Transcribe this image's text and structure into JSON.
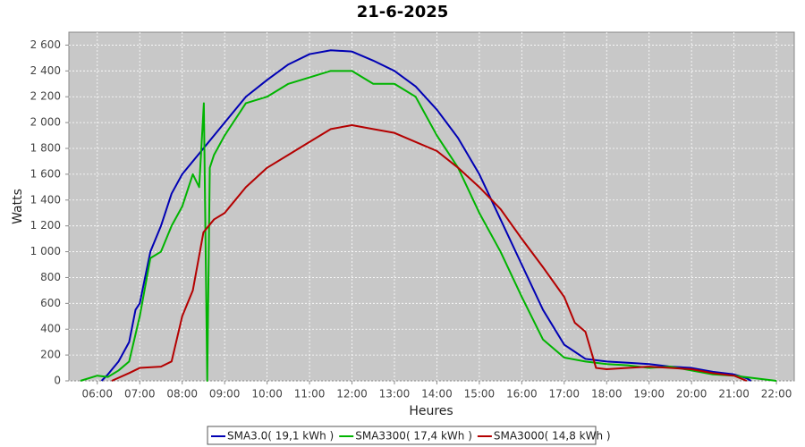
{
  "chart_data": {
    "type": "line",
    "title": "21-6-2025",
    "x_label": "Heures",
    "y_label": "Watts",
    "xlim": [
      5.33,
      22.42
    ],
    "ylim": [
      0,
      2700
    ],
    "grid": true,
    "legend": "bottom",
    "xticks": [
      {
        "value": 6,
        "label": "06:00"
      },
      {
        "value": 7,
        "label": "07:00"
      },
      {
        "value": 8,
        "label": "08:00"
      },
      {
        "value": 9,
        "label": "09:00"
      },
      {
        "value": 10,
        "label": "10:00"
      },
      {
        "value": 11,
        "label": "11:00"
      },
      {
        "value": 12,
        "label": "12:00"
      },
      {
        "value": 13,
        "label": "13:00"
      },
      {
        "value": 14,
        "label": "14:00"
      },
      {
        "value": 15,
        "label": "15:00"
      },
      {
        "value": 16,
        "label": "16:00"
      },
      {
        "value": 17,
        "label": "17:00"
      },
      {
        "value": 18,
        "label": "18:00"
      },
      {
        "value": 19,
        "label": "19:00"
      },
      {
        "value": 20,
        "label": "20:00"
      },
      {
        "value": 21,
        "label": "21:00"
      },
      {
        "value": 22,
        "label": "22:00"
      }
    ],
    "yticks": [
      0,
      200,
      400,
      600,
      800,
      {
        "value": 1000,
        "label": "1 000"
      },
      {
        "value": 1200,
        "label": "1 200"
      },
      {
        "value": 1400,
        "label": "1 400"
      },
      {
        "value": 1600,
        "label": "1 600"
      },
      {
        "value": 1800,
        "label": "1 800"
      },
      {
        "value": 2000,
        "label": "2 000"
      },
      {
        "value": 2200,
        "label": "2 200"
      },
      {
        "value": 2400,
        "label": "2 400"
      },
      {
        "value": 2600,
        "label": "2 600"
      }
    ],
    "series": [
      {
        "name": "SMA3.0( 19,1 kWh )",
        "color": "#0000b4",
        "x": [
          6.1,
          6.25,
          6.5,
          6.75,
          6.9,
          7.0,
          7.25,
          7.5,
          7.75,
          8.0,
          8.5,
          9.0,
          9.5,
          10.0,
          10.5,
          11.0,
          11.5,
          12.0,
          12.5,
          13.0,
          13.5,
          14.0,
          14.5,
          15.0,
          15.5,
          16.0,
          16.5,
          17.0,
          17.5,
          18.0,
          18.5,
          19.0,
          19.5,
          20.0,
          20.5,
          21.0,
          21.3,
          21.4
        ],
        "values": [
          0,
          50,
          150,
          300,
          550,
          600,
          1000,
          1200,
          1450,
          1600,
          1800,
          2000,
          2200,
          2330,
          2450,
          2530,
          2560,
          2550,
          2480,
          2400,
          2280,
          2100,
          1880,
          1600,
          1250,
          900,
          550,
          280,
          170,
          150,
          140,
          130,
          110,
          100,
          70,
          50,
          20,
          0
        ]
      },
      {
        "name": "SMA3300( 17,4 kWh )",
        "color": "#00b400",
        "x": [
          5.6,
          6.0,
          6.25,
          6.5,
          6.75,
          7.0,
          7.25,
          7.5,
          7.75,
          8.0,
          8.25,
          8.4,
          8.51,
          8.59,
          8.65,
          8.75,
          9.0,
          9.5,
          10.0,
          10.5,
          11.0,
          11.5,
          12.0,
          12.5,
          13.0,
          13.5,
          14.0,
          14.5,
          15.0,
          15.5,
          16.0,
          16.5,
          17.0,
          17.5,
          18.0,
          18.5,
          19.0,
          19.5,
          20.0,
          20.5,
          21.0,
          21.5,
          22.0
        ],
        "values": [
          0,
          40,
          30,
          80,
          150,
          500,
          950,
          1000,
          1200,
          1350,
          1600,
          1500,
          2150,
          0,
          1650,
          1750,
          1900,
          2150,
          2200,
          2300,
          2350,
          2400,
          2400,
          2300,
          2300,
          2200,
          1900,
          1650,
          1300,
          1000,
          650,
          320,
          180,
          150,
          130,
          120,
          100,
          110,
          80,
          50,
          40,
          20,
          0
        ]
      },
      {
        "name": "SMA3000( 14,8 kWh )",
        "color": "#b40000",
        "x": [
          6.34,
          6.75,
          7.0,
          7.5,
          7.75,
          8.0,
          8.25,
          8.5,
          8.75,
          9.0,
          9.5,
          10.0,
          10.5,
          11.0,
          11.5,
          12.0,
          12.5,
          13.0,
          13.5,
          14.0,
          14.5,
          15.0,
          15.5,
          16.0,
          16.5,
          17.0,
          17.25,
          17.5,
          17.75,
          18.0,
          18.5,
          19.0,
          19.5,
          20.0,
          20.5,
          21.0,
          21.3
        ],
        "values": [
          0,
          60,
          100,
          110,
          150,
          500,
          700,
          1150,
          1250,
          1300,
          1500,
          1650,
          1750,
          1850,
          1950,
          1980,
          1950,
          1920,
          1850,
          1780,
          1650,
          1500,
          1330,
          1100,
          880,
          650,
          450,
          380,
          100,
          90,
          100,
          110,
          100,
          90,
          60,
          40,
          0
        ]
      }
    ]
  }
}
